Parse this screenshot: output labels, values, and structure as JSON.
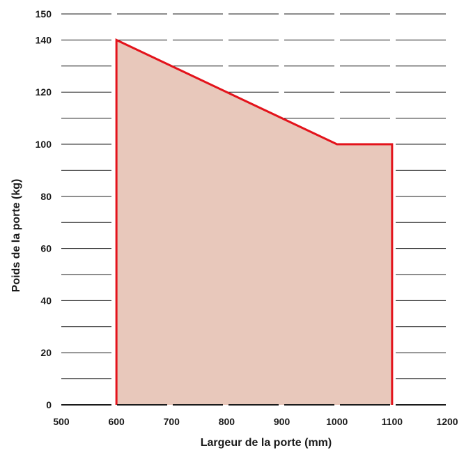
{
  "chart_data": {
    "type": "area",
    "xlabel": "Largeur de la porte (mm)",
    "ylabel": "Poids de la porte (kg)",
    "xlim": [
      500,
      1200
    ],
    "ylim": [
      0,
      150
    ],
    "x_ticks": [
      "500",
      "600",
      "700",
      "800",
      "900",
      "1000",
      "1100",
      "1200"
    ],
    "y_ticks": [
      "0",
      "20",
      "40",
      "60",
      "80",
      "100",
      "120",
      "140",
      "150"
    ],
    "grid": true,
    "series": [
      {
        "points": [
          {
            "x": 600,
            "y": 0
          },
          {
            "x": 600,
            "y": 140
          },
          {
            "x": 1000,
            "y": 100
          },
          {
            "x": 1100,
            "y": 100
          },
          {
            "x": 1100,
            "y": 0
          }
        ]
      }
    ],
    "colors": {
      "line": "#e3131b",
      "fill": "#e8c8bb",
      "grid": "#1a1a1a",
      "text": "#1a1a1a"
    }
  }
}
